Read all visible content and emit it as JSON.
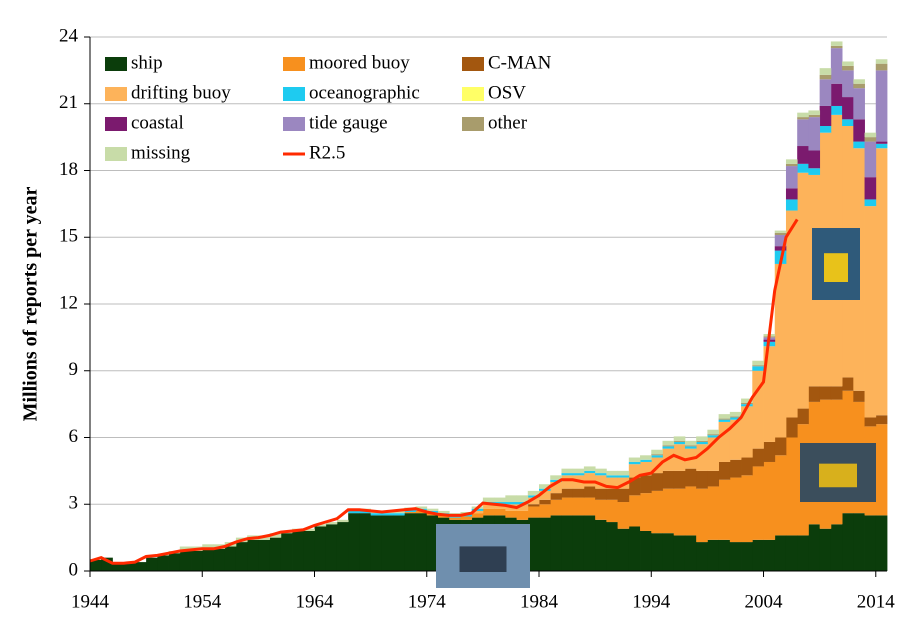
{
  "chart_data": {
    "type": "area",
    "ylabel": "Millions of reports per year",
    "x": [
      1944,
      1945,
      1946,
      1947,
      1948,
      1949,
      1950,
      1951,
      1952,
      1953,
      1954,
      1955,
      1956,
      1957,
      1958,
      1959,
      1960,
      1961,
      1962,
      1963,
      1964,
      1965,
      1966,
      1967,
      1968,
      1969,
      1970,
      1971,
      1972,
      1973,
      1974,
      1975,
      1976,
      1977,
      1978,
      1979,
      1980,
      1981,
      1982,
      1983,
      1984,
      1985,
      1986,
      1987,
      1988,
      1989,
      1990,
      1991,
      1992,
      1993,
      1994,
      1995,
      1996,
      1997,
      1998,
      1999,
      2000,
      2001,
      2002,
      2003,
      2004,
      2005,
      2006,
      2007,
      2008,
      2009,
      2010,
      2011,
      2012,
      2013,
      2014
    ],
    "xlim": [
      1944,
      2015
    ],
    "xticks": [
      1944,
      1954,
      1964,
      1974,
      1984,
      1994,
      2004,
      2014
    ],
    "ylim": [
      0,
      24
    ],
    "yticks": [
      0,
      3,
      6,
      9,
      12,
      15,
      18,
      21,
      24
    ],
    "grid": true,
    "series": [
      {
        "name": "ship",
        "color": "#0b3d0b",
        "values": [
          0.5,
          0.6,
          0.4,
          0.4,
          0.4,
          0.6,
          0.7,
          0.8,
          0.9,
          0.9,
          1.0,
          1.0,
          1.1,
          1.3,
          1.4,
          1.4,
          1.5,
          1.7,
          1.8,
          1.8,
          2.0,
          2.1,
          2.2,
          2.6,
          2.6,
          2.5,
          2.5,
          2.5,
          2.6,
          2.6,
          2.5,
          2.4,
          2.3,
          2.3,
          2.4,
          2.5,
          2.5,
          2.4,
          2.3,
          2.4,
          2.4,
          2.5,
          2.5,
          2.5,
          2.5,
          2.3,
          2.2,
          1.9,
          2.0,
          1.8,
          1.7,
          1.7,
          1.6,
          1.6,
          1.3,
          1.4,
          1.4,
          1.3,
          1.3,
          1.4,
          1.4,
          1.6,
          1.6,
          1.6,
          2.1,
          1.9,
          2.1,
          2.6,
          2.6,
          2.5,
          2.5
        ]
      },
      {
        "name": "moored buoy",
        "color": "#f7901e",
        "values": [
          0,
          0,
          0,
          0,
          0,
          0,
          0,
          0,
          0,
          0,
          0,
          0,
          0,
          0,
          0,
          0,
          0,
          0,
          0,
          0,
          0,
          0,
          0,
          0,
          0,
          0,
          0,
          0,
          0.05,
          0.1,
          0.1,
          0.1,
          0.1,
          0.15,
          0.2,
          0.3,
          0.3,
          0.3,
          0.4,
          0.5,
          0.6,
          0.7,
          0.8,
          0.8,
          0.8,
          0.9,
          1.0,
          1.2,
          1.4,
          1.7,
          1.9,
          2.0,
          2.1,
          2.2,
          2.4,
          2.4,
          2.7,
          2.9,
          3.0,
          3.3,
          3.5,
          3.6,
          4.4,
          5.0,
          5.5,
          5.8,
          5.6,
          5.5,
          5.0,
          4.0,
          4.1
        ]
      },
      {
        "name": "C-MAN",
        "color": "#a3570f",
        "values": [
          0,
          0,
          0,
          0,
          0,
          0,
          0,
          0,
          0,
          0,
          0,
          0,
          0,
          0,
          0,
          0,
          0,
          0,
          0,
          0,
          0,
          0,
          0,
          0,
          0,
          0,
          0,
          0,
          0,
          0,
          0,
          0,
          0,
          0,
          0,
          0,
          0,
          0,
          0,
          0.1,
          0.2,
          0.3,
          0.4,
          0.4,
          0.5,
          0.5,
          0.5,
          0.6,
          0.8,
          0.8,
          0.8,
          0.8,
          0.8,
          0.8,
          0.8,
          0.7,
          0.8,
          0.8,
          0.8,
          0.8,
          0.9,
          0.8,
          0.9,
          0.7,
          0.7,
          0.6,
          0.6,
          0.6,
          0.5,
          0.4,
          0.4
        ]
      },
      {
        "name": "drifting buoy",
        "color": "#fdb35a",
        "values": [
          0,
          0,
          0,
          0,
          0,
          0,
          0,
          0,
          0,
          0,
          0,
          0,
          0,
          0,
          0,
          0,
          0,
          0,
          0,
          0,
          0,
          0,
          0,
          0,
          0,
          0,
          0,
          0,
          0,
          0,
          0,
          0,
          0,
          0,
          0.1,
          0.2,
          0.2,
          0.3,
          0.3,
          0.3,
          0.4,
          0.5,
          0.6,
          0.6,
          0.6,
          0.6,
          0.5,
          0.5,
          0.6,
          0.6,
          0.7,
          1.0,
          1.2,
          0.9,
          1.2,
          1.5,
          1.8,
          1.8,
          2.3,
          3.5,
          4.3,
          7.8,
          9.3,
          10.6,
          9.5,
          11.4,
          12.2,
          11.3,
          10.9,
          9.5,
          12.0
        ]
      },
      {
        "name": "oceanographic",
        "color": "#1ecbf0",
        "values": [
          0,
          0,
          0,
          0,
          0,
          0,
          0,
          0,
          0,
          0,
          0,
          0,
          0,
          0,
          0,
          0,
          0,
          0,
          0,
          0,
          0,
          0,
          0,
          0.1,
          0.1,
          0.1,
          0.1,
          0.1,
          0.1,
          0.1,
          0.1,
          0.1,
          0.1,
          0.1,
          0.1,
          0.1,
          0.1,
          0.1,
          0.1,
          0.1,
          0.1,
          0.1,
          0.1,
          0.1,
          0.1,
          0.1,
          0.1,
          0.1,
          0.1,
          0.1,
          0.1,
          0.1,
          0.1,
          0.1,
          0.1,
          0.1,
          0.1,
          0.1,
          0.1,
          0.2,
          0.2,
          0.6,
          0.5,
          0.4,
          0.3,
          0.3,
          0.4,
          0.3,
          0.3,
          0.3,
          0.2
        ]
      },
      {
        "name": "OSV",
        "color": "#ffff66",
        "values": [
          0,
          0,
          0,
          0,
          0,
          0,
          0,
          0,
          0,
          0,
          0,
          0,
          0,
          0,
          0,
          0,
          0,
          0,
          0,
          0,
          0,
          0,
          0,
          0,
          0,
          0,
          0,
          0,
          0,
          0,
          0,
          0,
          0,
          0,
          0,
          0,
          0,
          0,
          0,
          0,
          0,
          0,
          0,
          0,
          0,
          0,
          0,
          0,
          0,
          0,
          0,
          0,
          0,
          0,
          0,
          0,
          0,
          0,
          0,
          0,
          0,
          0,
          0,
          0,
          0,
          0,
          0,
          0,
          0,
          0,
          0
        ]
      },
      {
        "name": "coastal",
        "color": "#7b1a6e",
        "values": [
          0,
          0,
          0,
          0,
          0,
          0,
          0,
          0,
          0,
          0,
          0,
          0,
          0,
          0,
          0,
          0,
          0,
          0,
          0,
          0,
          0,
          0,
          0,
          0,
          0,
          0,
          0,
          0,
          0,
          0,
          0,
          0,
          0,
          0,
          0,
          0,
          0,
          0,
          0,
          0,
          0,
          0,
          0,
          0,
          0,
          0,
          0,
          0,
          0,
          0,
          0,
          0,
          0,
          0,
          0,
          0,
          0,
          0,
          0,
          0,
          0.1,
          0.2,
          0.5,
          0.8,
          0.8,
          0.9,
          1.0,
          1.0,
          1.0,
          1.0,
          0.1
        ]
      },
      {
        "name": "tide gauge",
        "color": "#9b87c0",
        "values": [
          0,
          0,
          0,
          0,
          0,
          0,
          0,
          0,
          0,
          0,
          0,
          0,
          0,
          0,
          0,
          0,
          0,
          0,
          0,
          0,
          0,
          0,
          0,
          0,
          0,
          0,
          0,
          0,
          0,
          0,
          0,
          0,
          0,
          0,
          0,
          0,
          0,
          0,
          0,
          0,
          0,
          0,
          0,
          0,
          0,
          0,
          0,
          0,
          0,
          0,
          0,
          0,
          0,
          0,
          0,
          0,
          0,
          0,
          0,
          0,
          0.1,
          0.5,
          1.0,
          1.2,
          1.5,
          1.2,
          1.6,
          1.2,
          1.4,
          1.6,
          3.2
        ]
      },
      {
        "name": "other",
        "color": "#a89c6c",
        "values": [
          0,
          0,
          0,
          0,
          0,
          0,
          0,
          0,
          0,
          0,
          0,
          0,
          0,
          0,
          0,
          0,
          0,
          0,
          0,
          0,
          0,
          0,
          0,
          0,
          0,
          0,
          0,
          0,
          0,
          0,
          0,
          0,
          0,
          0,
          0,
          0,
          0,
          0,
          0,
          0,
          0,
          0,
          0,
          0,
          0,
          0,
          0,
          0,
          0,
          0,
          0.05,
          0.05,
          0.05,
          0.05,
          0.05,
          0.05,
          0.05,
          0.05,
          0.05,
          0.05,
          0.05,
          0.1,
          0.1,
          0.1,
          0.1,
          0.2,
          0.1,
          0.2,
          0.2,
          0.2,
          0.3
        ]
      },
      {
        "name": "missing",
        "color": "#c8dca8",
        "values": [
          0,
          0,
          0,
          0,
          0,
          0,
          0.05,
          0.1,
          0.2,
          0.2,
          0.2,
          0.2,
          0.2,
          0.2,
          0.2,
          0.2,
          0.2,
          0.1,
          0.1,
          0.1,
          0.1,
          0.1,
          0.1,
          0.1,
          0.1,
          0.1,
          0.1,
          0.1,
          0.1,
          0.1,
          0.1,
          0.1,
          0.1,
          0.1,
          0.1,
          0.2,
          0.2,
          0.3,
          0.3,
          0.2,
          0.2,
          0.2,
          0.2,
          0.2,
          0.2,
          0.2,
          0.2,
          0.2,
          0.2,
          0.2,
          0.2,
          0.2,
          0.2,
          0.2,
          0.2,
          0.2,
          0.2,
          0.2,
          0.2,
          0.2,
          0.1,
          0.1,
          0.2,
          0.2,
          0.2,
          0.3,
          0.2,
          0.2,
          0.2,
          0.2,
          0.2
        ]
      },
      {
        "name": "R2.5",
        "color": "#ff2a00",
        "type": "line",
        "values": [
          0.45,
          0.6,
          0.35,
          0.35,
          0.4,
          0.65,
          0.7,
          0.8,
          0.9,
          0.95,
          1.0,
          1.0,
          1.1,
          1.3,
          1.45,
          1.5,
          1.6,
          1.75,
          1.8,
          1.85,
          2.05,
          2.2,
          2.35,
          2.75,
          2.75,
          2.7,
          2.65,
          2.7,
          2.75,
          2.8,
          2.65,
          2.55,
          2.5,
          2.5,
          2.6,
          3.05,
          3.0,
          2.95,
          2.85,
          3.1,
          3.4,
          3.8,
          4.1,
          4.1,
          4.0,
          4.0,
          3.8,
          3.75,
          4.0,
          4.3,
          4.4,
          4.9,
          5.2,
          5.0,
          5.1,
          5.5,
          6.0,
          6.4,
          6.9,
          7.8,
          8.5,
          12.6,
          15.0,
          15.8,
          null,
          null,
          null,
          null,
          null,
          null,
          null
        ]
      }
    ]
  }
}
